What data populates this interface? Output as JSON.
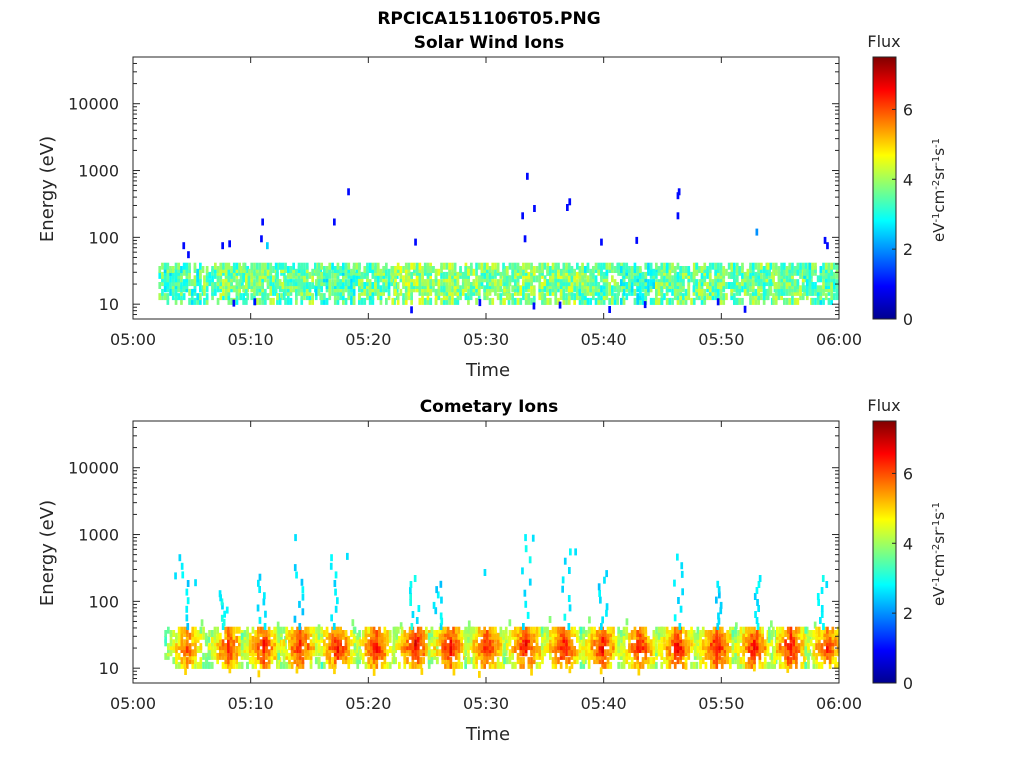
{
  "figure": {
    "title": "RPCICA151106T05.PNG"
  },
  "colors": {
    "colormap": "jet",
    "axis": "#262626",
    "background": "#ffffff"
  },
  "chart_data": [
    {
      "type": "heatmap",
      "title": "Solar Wind Ions",
      "xlabel": "Time",
      "ylabel": "Energy (eV)",
      "xticks": [
        "05:00",
        "05:10",
        "05:20",
        "05:30",
        "05:40",
        "05:50",
        "06:00"
      ],
      "xlim_minutes": [
        0,
        60
      ],
      "yticks": [
        "10",
        "100",
        "1000",
        "10000"
      ],
      "ylim": [
        6,
        50000
      ],
      "yscale": "log",
      "colorbar": {
        "label": "Flux",
        "units": "eV-1cm-2sr-1s-1",
        "ticks": [
          "0",
          "2",
          "4",
          "6"
        ],
        "range": [
          0,
          7.5
        ]
      },
      "clusters": [
        {
          "t": 4.0,
          "flux": 3.3
        },
        {
          "t": 7.8,
          "flux": 3.6
        },
        {
          "t": 10.9,
          "flux": 3.6
        },
        {
          "t": 14.0,
          "flux": 3.6
        },
        {
          "t": 17.3,
          "flux": 3.3
        },
        {
          "t": 20.5,
          "flux": 3.5
        },
        {
          "t": 23.8,
          "flux": 3.9
        },
        {
          "t": 26.8,
          "flux": 3.8
        },
        {
          "t": 30.0,
          "flux": 3.7
        },
        {
          "t": 33.3,
          "flux": 3.8
        },
        {
          "t": 36.5,
          "flux": 3.8
        },
        {
          "t": 39.7,
          "flux": 3.5
        },
        {
          "t": 43.0,
          "flux": 3.3
        },
        {
          "t": 46.2,
          "flux": 3.6
        },
        {
          "t": 49.4,
          "flux": 3.6
        },
        {
          "t": 52.6,
          "flux": 3.6
        },
        {
          "t": 55.7,
          "flux": 3.7
        },
        {
          "t": 58.8,
          "flux": 3.4
        }
      ],
      "sparse_points": [
        {
          "t": 4.2,
          "e": 75,
          "flux": 1.0
        },
        {
          "t": 4.6,
          "e": 55,
          "flux": 1.0
        },
        {
          "t": 7.5,
          "e": 75,
          "flux": 1.0
        },
        {
          "t": 8.1,
          "e": 80,
          "flux": 1.0
        },
        {
          "t": 10.9,
          "e": 170,
          "flux": 1.0
        },
        {
          "t": 11.3,
          "e": 75,
          "flux": 2.5
        },
        {
          "t": 10.8,
          "e": 95,
          "flux": 1.0
        },
        {
          "t": 17.0,
          "e": 170,
          "flux": 1.0
        },
        {
          "t": 18.2,
          "e": 480,
          "flux": 1.0
        },
        {
          "t": 23.9,
          "e": 85,
          "flux": 1.0
        },
        {
          "t": 33.0,
          "e": 210,
          "flux": 1.0
        },
        {
          "t": 33.4,
          "e": 820,
          "flux": 1.0
        },
        {
          "t": 34.0,
          "e": 270,
          "flux": 1.0
        },
        {
          "t": 33.2,
          "e": 95,
          "flux": 1.0
        },
        {
          "t": 36.8,
          "e": 280,
          "flux": 1.0
        },
        {
          "t": 37.0,
          "e": 340,
          "flux": 1.0
        },
        {
          "t": 39.7,
          "e": 85,
          "flux": 1.0
        },
        {
          "t": 42.7,
          "e": 90,
          "flux": 1.0
        },
        {
          "t": 46.2,
          "e": 420,
          "flux": 1.0
        },
        {
          "t": 46.3,
          "e": 480,
          "flux": 1.0
        },
        {
          "t": 46.2,
          "e": 210,
          "flux": 1.0
        },
        {
          "t": 52.9,
          "e": 120,
          "flux": 2.0
        },
        {
          "t": 58.7,
          "e": 90,
          "flux": 1.0
        },
        {
          "t": 58.9,
          "e": 75,
          "flux": 1.0
        }
      ]
    },
    {
      "type": "heatmap",
      "title": "Cometary Ions",
      "xlabel": "Time",
      "ylabel": "Energy (eV)",
      "xticks": [
        "05:00",
        "05:10",
        "05:20",
        "05:30",
        "05:40",
        "05:50",
        "06:00"
      ],
      "xlim_minutes": [
        0,
        60
      ],
      "yticks": [
        "10",
        "100",
        "1000",
        "10000"
      ],
      "ylim": [
        6,
        50000
      ],
      "yscale": "log",
      "colorbar": {
        "label": "Flux",
        "units": "eV-1cm-2sr-1s-1",
        "ticks": [
          "0",
          "2",
          "4",
          "6"
        ],
        "range": [
          0,
          7.5
        ]
      },
      "clusters": [
        {
          "t": 4.5,
          "flux": 6.0
        },
        {
          "t": 8.0,
          "flux": 6.3
        },
        {
          "t": 11.0,
          "flux": 6.4
        },
        {
          "t": 14.1,
          "flux": 6.5
        },
        {
          "t": 17.3,
          "flux": 6.5
        },
        {
          "t": 20.6,
          "flux": 6.5
        },
        {
          "t": 23.9,
          "flux": 6.7
        },
        {
          "t": 26.9,
          "flux": 6.6
        },
        {
          "t": 30.0,
          "flux": 6.5
        },
        {
          "t": 33.3,
          "flux": 6.6
        },
        {
          "t": 36.5,
          "flux": 6.6
        },
        {
          "t": 39.8,
          "flux": 6.5
        },
        {
          "t": 43.0,
          "flux": 6.5
        },
        {
          "t": 46.2,
          "flux": 6.6
        },
        {
          "t": 49.5,
          "flux": 6.6
        },
        {
          "t": 52.7,
          "flux": 6.5
        },
        {
          "t": 55.8,
          "flux": 6.6
        },
        {
          "t": 58.9,
          "flux": 6.3
        }
      ],
      "plumes": [
        {
          "t": 4.2,
          "e_top": 450,
          "flux": 2.6
        },
        {
          "t": 7.5,
          "e_top": 130,
          "flux": 2.8
        },
        {
          "t": 10.8,
          "e_top": 230,
          "flux": 2.7
        },
        {
          "t": 14.0,
          "e_top": 320,
          "flux": 2.6
        },
        {
          "t": 17.0,
          "e_top": 450,
          "flux": 2.6
        },
        {
          "t": 23.8,
          "e_top": 220,
          "flux": 2.8
        },
        {
          "t": 25.8,
          "e_top": 180,
          "flux": 2.6
        },
        {
          "t": 33.3,
          "e_top": 900,
          "flux": 2.7
        },
        {
          "t": 36.7,
          "e_top": 550,
          "flux": 2.7
        },
        {
          "t": 39.9,
          "e_top": 260,
          "flux": 2.6
        },
        {
          "t": 46.2,
          "e_top": 460,
          "flux": 2.7
        },
        {
          "t": 49.5,
          "e_top": 180,
          "flux": 2.6
        },
        {
          "t": 52.8,
          "e_top": 220,
          "flux": 2.7
        },
        {
          "t": 58.5,
          "e_top": 220,
          "flux": 2.8
        }
      ],
      "sparse_points": [
        {
          "t": 3.5,
          "e": 240,
          "flux": 2.6
        },
        {
          "t": 5.2,
          "e": 190,
          "flux": 2.6
        },
        {
          "t": 13.7,
          "e": 900,
          "flux": 2.6
        },
        {
          "t": 18.1,
          "e": 470,
          "flux": 2.6
        },
        {
          "t": 29.8,
          "e": 270,
          "flux": 2.6
        },
        {
          "t": 33.9,
          "e": 880,
          "flux": 2.6
        },
        {
          "t": 37.5,
          "e": 550,
          "flux": 2.6
        }
      ]
    }
  ]
}
